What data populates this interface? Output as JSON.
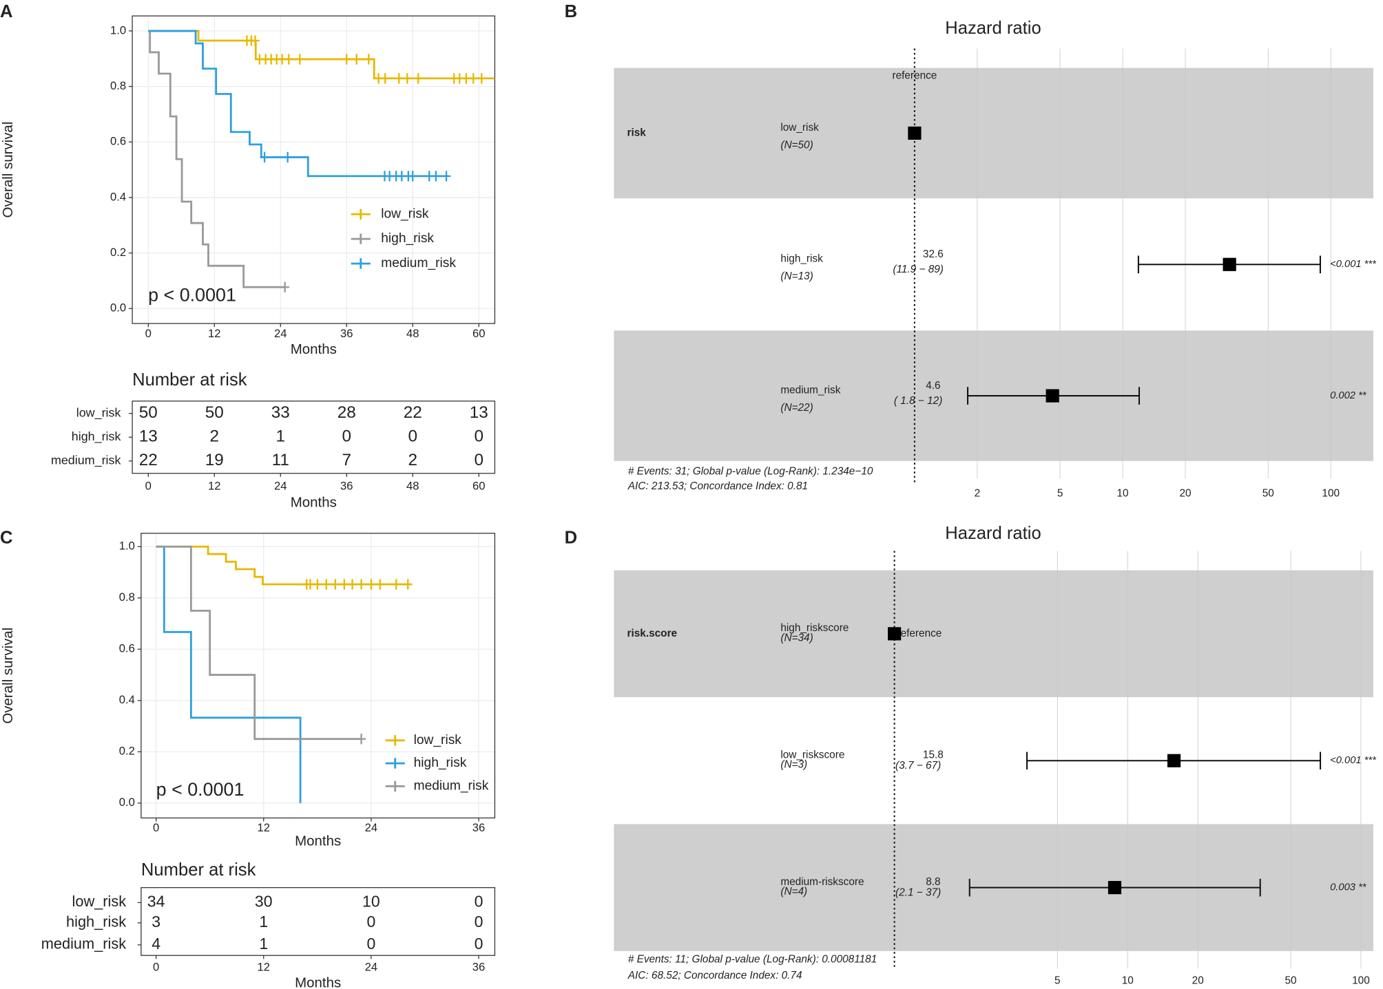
{
  "chart_data": [
    {
      "panel": "A",
      "type": "km",
      "ylabel": "Overall survival",
      "xlabel": "Months",
      "xlim": [
        -2.9,
        62.9
      ],
      "ylim": [
        -0.054,
        1.054
      ],
      "xticks": [
        0,
        12,
        24,
        36,
        48,
        60
      ],
      "yticks": [
        {
          "value": 0,
          "label": "0.0"
        },
        {
          "value": 0.2,
          "label": "0.2"
        },
        {
          "value": 0.4,
          "label": "0.4"
        },
        {
          "value": 0.6,
          "label": "0.6"
        },
        {
          "value": 0.8,
          "label": "0.8"
        },
        {
          "value": 1,
          "label": "1.0"
        }
      ],
      "grid": true,
      "annotation": "p < 0.0001",
      "series": [
        {
          "name": "low_risk",
          "color": "#E7B800",
          "x": [
            0,
            9.1,
            19.5,
            41,
            62.9
          ],
          "values": [
            1,
            0.965,
            0.898,
            0.829,
            0.829
          ],
          "censor": [
            17.9,
            18.7,
            19.4,
            20.2,
            21.3,
            22.3,
            23.3,
            24.3,
            25.5,
            27.5,
            36,
            37.8,
            40,
            41.8,
            43,
            45.5,
            47,
            49,
            55.5,
            56.5,
            57.7,
            59,
            60.5
          ]
        },
        {
          "name": "high_risk",
          "color": "#999999",
          "x": [
            0,
            0.3,
            1.9,
            4,
            5.1,
            6.1,
            7.8,
            9.9,
            10.9,
            17.3,
            24.8
          ],
          "values": [
            1,
            0.923,
            0.846,
            0.692,
            0.538,
            0.385,
            0.308,
            0.231,
            0.154,
            0.077,
            0.077
          ],
          "censor": [
            24.8
          ]
        },
        {
          "name": "medium_risk",
          "color": "#2E9FDF",
          "x": [
            0,
            8.6,
            9.9,
            12.3,
            15,
            18.4,
            20.5,
            29,
            54.4
          ],
          "values": [
            1,
            0.955,
            0.864,
            0.773,
            0.636,
            0.591,
            0.545,
            0.477,
            0.477
          ],
          "censor": [
            21.1,
            25.3,
            42.9,
            43.8,
            45,
            46,
            47.2,
            48,
            51,
            52.2,
            54.1
          ]
        }
      ],
      "risk_table": {
        "title": "Number at risk",
        "xlabel": "Months",
        "rows": [
          {
            "name": "low_risk",
            "values": [
              50,
              50,
              33,
              28,
              22,
              13
            ]
          },
          {
            "name": "high_risk",
            "values": [
              13,
              2,
              1,
              0,
              0,
              0
            ]
          },
          {
            "name": "medium_risk",
            "values": [
              22,
              19,
              11,
              7,
              2,
              0
            ]
          }
        ]
      }
    },
    {
      "panel": "B",
      "type": "forest",
      "title": "Hazard ratio",
      "variable": "risk",
      "xscale": "log",
      "xlim": [
        0.0359,
        160
      ],
      "xticks": [
        2,
        5,
        10,
        20,
        50,
        100
      ],
      "rows": [
        {
          "label": "low_risk",
          "n": "(N=50)",
          "hr": 1,
          "hr_label": "reference"
        },
        {
          "label": "high_risk",
          "n": "(N=13)",
          "hr": 32.6,
          "ci": [
            11.9,
            89
          ],
          "ci_label": "(11.9 − 89)",
          "p_label": "<0.001 ***"
        },
        {
          "label": "medium_risk",
          "n": "(N=22)",
          "hr": 4.6,
          "ci": [
            1.8,
            12
          ],
          "ci_label": "( 1.8 − 12)",
          "p_label": "0.002 **"
        }
      ],
      "footer": [
        "# Events: 31; Global p-value (Log-Rank): 1.234e−10",
        "AIC: 213.53; Concordance Index: 0.81"
      ]
    },
    {
      "panel": "C",
      "type": "km",
      "ylabel": "Overall survival",
      "xlabel": "Months",
      "xlim": [
        -1.67,
        37.8
      ],
      "ylim": [
        -0.058,
        1.052
      ],
      "xticks": [
        0,
        12,
        24,
        36
      ],
      "yticks": [
        {
          "value": 0,
          "label": "0.0"
        },
        {
          "value": 0.2,
          "label": "0.2"
        },
        {
          "value": 0.4,
          "label": "0.4"
        },
        {
          "value": 0.6,
          "label": "0.6"
        },
        {
          "value": 0.8,
          "label": "0.8"
        },
        {
          "value": 1,
          "label": "1.0"
        }
      ],
      "grid": true,
      "annotation": "p < 0.0001",
      "series": [
        {
          "name": "low_risk",
          "color": "#E7B800",
          "x": [
            0,
            5.8,
            7.8,
            8.9,
            11,
            11.9,
            28.4
          ],
          "values": [
            1,
            0.971,
            0.941,
            0.912,
            0.882,
            0.853,
            0.853
          ],
          "censor": [
            16.8,
            17.2,
            18,
            19,
            20,
            21,
            21.9,
            22.9,
            24,
            25,
            26.8,
            28.1
          ]
        },
        {
          "name": "high_risk",
          "color": "#2E9FDF",
          "x": [
            0,
            0.9,
            3.9,
            16.1
          ],
          "values": [
            1,
            0.667,
            0.333,
            0
          ],
          "censor": []
        },
        {
          "name": "medium_risk",
          "color": "#999999",
          "x": [
            0,
            3.9,
            6,
            11,
            22.9
          ],
          "values": [
            1,
            0.75,
            0.5,
            0.25,
            0.25
          ],
          "censor": [
            22.9
          ]
        }
      ],
      "risk_table": {
        "title": "Number at risk",
        "xlabel": "Months",
        "rows": [
          {
            "name": "low_risk",
            "values": [
              34,
              30,
              10,
              0
            ]
          },
          {
            "name": "high_risk",
            "values": [
              3,
              1,
              0,
              0
            ]
          },
          {
            "name": "medium_risk",
            "values": [
              4,
              1,
              0,
              0
            ]
          }
        ]
      }
    },
    {
      "panel": "D",
      "type": "forest",
      "title": "Hazard ratio",
      "variable": "risk.score",
      "xscale": "log",
      "xlim": [
        0.0627,
        113
      ],
      "xticks": [
        5,
        10,
        20,
        50,
        100
      ],
      "rows": [
        {
          "label": "high_riskscore",
          "n": "(N=34)",
          "hr": 1,
          "hr_label": "reference"
        },
        {
          "label": "low_riskscore",
          "n": "(N=3)",
          "hr": 15.8,
          "ci": [
            3.7,
            67
          ],
          "ci_label": "(3.7 − 67)",
          "p_label": "<0.001 ***"
        },
        {
          "label": "medium-riskscore",
          "n": "(N=4)",
          "hr": 8.8,
          "ci": [
            2.1,
            37
          ],
          "ci_label": "(2.1 − 37)",
          "p_label": "0.003 **"
        }
      ],
      "footer": [
        "# Events: 11; Global p-value (Log-Rank): 0.00081181",
        "AIC: 68.52; Concordance Index: 0.74"
      ]
    }
  ]
}
